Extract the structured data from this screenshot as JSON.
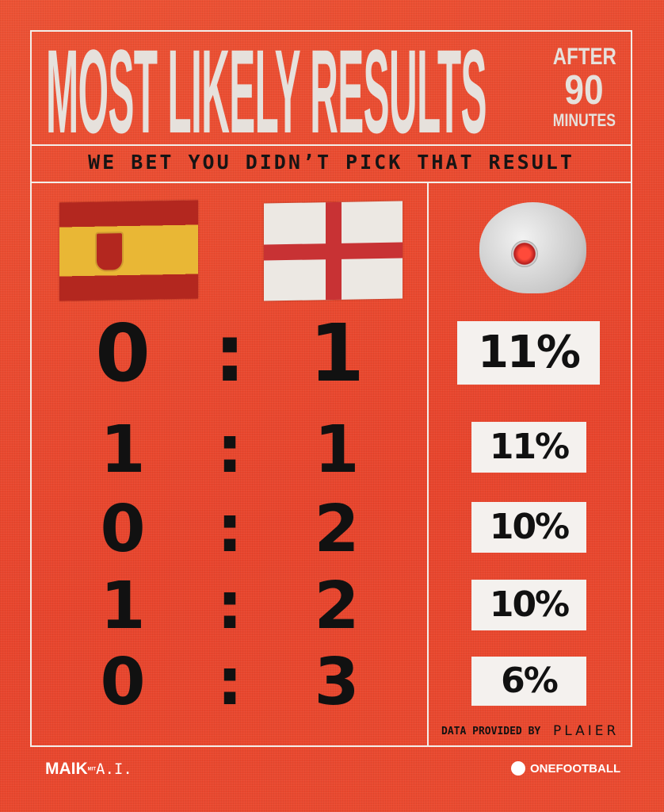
{
  "header": {
    "title": "MOST LIKELY RESULTS",
    "after_line1": "AFTER",
    "after_line2": "90",
    "after_line3": "MINUTES"
  },
  "subtitle": "WE BET YOU DIDN’T PICK THAT RESULT",
  "teams": {
    "home": "Spain",
    "away": "England",
    "home_flag": "spain-flag",
    "away_flag": "england-flag"
  },
  "results": [
    {
      "home": "0",
      "sep": ":",
      "away": "1",
      "pct": "11%"
    },
    {
      "home": "1",
      "sep": ":",
      "away": "1",
      "pct": "11%"
    },
    {
      "home": "0",
      "sep": ":",
      "away": "2",
      "pct": "10%"
    },
    {
      "home": "1",
      "sep": ":",
      "away": "2",
      "pct": "10%"
    },
    {
      "home": "0",
      "sep": ":",
      "away": "3",
      "pct": "6%"
    }
  ],
  "footer": {
    "credit": "DATA PROVIDED BY",
    "provider": "PLAIER",
    "brand_left": "MAIK",
    "brand_left_mit": "MIT",
    "brand_left_ai": "A.I.",
    "brand_right": "ONEFOOTBALL"
  },
  "colors": {
    "background": "#e94a30",
    "text": "#111111",
    "title": "#e6e1dc",
    "box": "#f4f1ee"
  }
}
